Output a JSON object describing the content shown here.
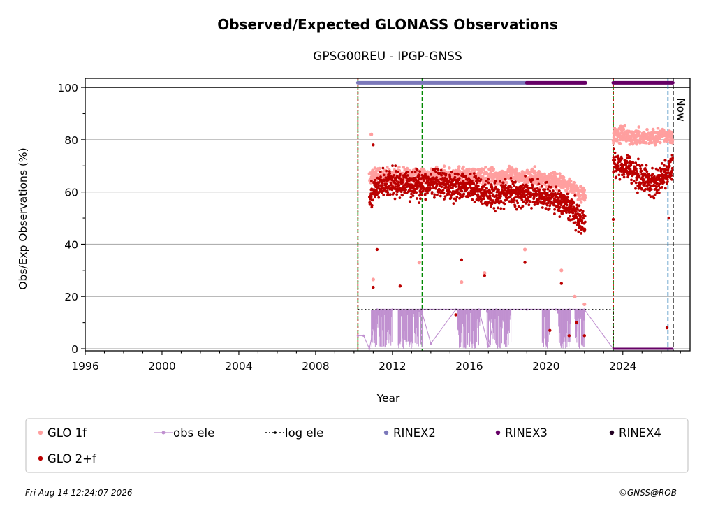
{
  "chart_data": {
    "type": "scatter",
    "title": "Observed/Expected GLONASS Observations",
    "subtitle": "GPSG00REU - IPGP-GNSS",
    "xlabel": "Year",
    "ylabel": "Obs/Exp Observations (%)",
    "xlim": [
      1996,
      2027.5
    ],
    "ylim": [
      -0.8,
      103.5
    ],
    "xticks": [
      "1996",
      "2000",
      "2004",
      "2008",
      "2012",
      "2016",
      "2020",
      "2024"
    ],
    "yticks": [
      "0",
      "20",
      "40",
      "60",
      "80",
      "100"
    ],
    "grid": "horizontal",
    "legend_position": "bottom",
    "now_label": "Now",
    "now_x": 2026.62,
    "series": [
      {
        "name": "GLO 1f",
        "color": "#ff9f9f",
        "segments": [
          {
            "x_start": 2010.8,
            "x_end": 2022.05,
            "mean": [
              [
                2010.8,
                66
              ],
              [
                2013.5,
                66
              ],
              [
                2016,
                66
              ],
              [
                2019,
                66
              ],
              [
                2020.8,
                64
              ],
              [
                2021.6,
                61
              ],
              [
                2022.05,
                58
              ]
            ]
          },
          {
            "x_start": 2023.5,
            "x_end": 2026.6,
            "mean": [
              [
                2023.5,
                82
              ],
              [
                2024.5,
                81
              ],
              [
                2025.5,
                81
              ],
              [
                2026.6,
                82
              ]
            ]
          }
        ],
        "outliers": [
          [
            2010.9,
            82
          ],
          [
            2011.0,
            26.5
          ],
          [
            2013.4,
            33
          ],
          [
            2015.6,
            25.5
          ],
          [
            2016.8,
            29
          ],
          [
            2018.9,
            38
          ],
          [
            2020.8,
            30
          ],
          [
            2021.5,
            20
          ],
          [
            2022.0,
            17
          ]
        ]
      },
      {
        "name": "GLO 2+f",
        "color": "#bb0000",
        "segments": [
          {
            "x_start": 2010.8,
            "x_end": 2022.05,
            "mean": [
              [
                2010.8,
                58
              ],
              [
                2011.5,
                63
              ],
              [
                2013.5,
                63
              ],
              [
                2016,
                62
              ],
              [
                2017,
                59
              ],
              [
                2019,
                60
              ],
              [
                2020.5,
                57
              ],
              [
                2021.5,
                52
              ],
              [
                2022.05,
                47
              ]
            ]
          },
          {
            "x_start": 2023.5,
            "x_end": 2026.6,
            "mean": [
              [
                2023.5,
                71
              ],
              [
                2024.2,
                70
              ],
              [
                2024.9,
                66
              ],
              [
                2025.5,
                63
              ],
              [
                2026.0,
                65
              ],
              [
                2026.6,
                69
              ]
            ]
          }
        ],
        "outliers": [
          [
            2011.0,
            78
          ],
          [
            2011.0,
            23.5
          ],
          [
            2011.2,
            38
          ],
          [
            2012.4,
            24
          ],
          [
            2015.3,
            13
          ],
          [
            2015.6,
            34
          ],
          [
            2016.8,
            28
          ],
          [
            2018.9,
            33
          ],
          [
            2020.2,
            7
          ],
          [
            2020.8,
            25
          ],
          [
            2021.2,
            5
          ],
          [
            2021.6,
            10
          ],
          [
            2022.0,
            5
          ],
          [
            2023.5,
            49.5
          ],
          [
            2026.3,
            8
          ],
          [
            2026.4,
            50
          ]
        ]
      },
      {
        "name": "obs ele",
        "color": "#c090d0",
        "points": [
          [
            2010.2,
            5
          ],
          [
            2010.5,
            5
          ],
          [
            2010.8,
            0
          ],
          [
            2011.2,
            15
          ],
          [
            2012.0,
            15
          ],
          [
            2013.5,
            15
          ],
          [
            2014.0,
            2
          ],
          [
            2015.3,
            15
          ],
          [
            2016.5,
            15
          ],
          [
            2017.0,
            1
          ],
          [
            2017.4,
            15
          ],
          [
            2019.0,
            15
          ],
          [
            2020.5,
            15
          ],
          [
            2021.2,
            15
          ],
          [
            2022.0,
            15
          ],
          [
            2023.5,
            0
          ],
          [
            2026.6,
            0
          ]
        ],
        "baseline": 15,
        "dense_drops": [
          [
            2010.9,
            2012.0
          ],
          [
            2012.3,
            2013.6
          ],
          [
            2015.4,
            2016.6
          ],
          [
            2016.9,
            2018.2
          ],
          [
            2019.8,
            2020.2
          ],
          [
            2020.6,
            2021.3
          ],
          [
            2021.5,
            2022.05
          ]
        ]
      },
      {
        "name": "log ele",
        "color": "#000000",
        "points": [
          [
            2010.2,
            15
          ],
          [
            2023.5,
            15
          ],
          [
            2023.5,
            0
          ],
          [
            2026.6,
            0
          ]
        ]
      },
      {
        "name": "RINEX2",
        "color": "#7b78ba",
        "y": 101.8,
        "ranges": [
          [
            2010.2,
            2019.0
          ]
        ]
      },
      {
        "name": "RINEX3",
        "color": "#660066",
        "y": 101.8,
        "ranges": [
          [
            2019.0,
            2022.05
          ],
          [
            2023.5,
            2026.6
          ]
        ]
      },
      {
        "name": "RINEX4",
        "color": "#220022",
        "y": 101.8,
        "ranges": []
      }
    ],
    "vlines": [
      {
        "x": 2010.2,
        "color": "#008800",
        "style": "dashed"
      },
      {
        "x": 2010.2,
        "color": "#cc0000",
        "style": "dotted"
      },
      {
        "x": 2013.55,
        "color": "#008800",
        "style": "dashed"
      },
      {
        "x": 2023.5,
        "color": "#008800",
        "style": "dashed"
      },
      {
        "x": 2023.5,
        "color": "#cc0000",
        "style": "dotted"
      },
      {
        "x": 2026.35,
        "color": "#1f77b4",
        "style": "dashed"
      },
      {
        "x": 2026.62,
        "color": "#000000",
        "style": "dashed"
      }
    ]
  },
  "footer": {
    "timestamp": "Fri Aug 14 12:24:07 2026",
    "credit": "©GNSS@ROB"
  }
}
